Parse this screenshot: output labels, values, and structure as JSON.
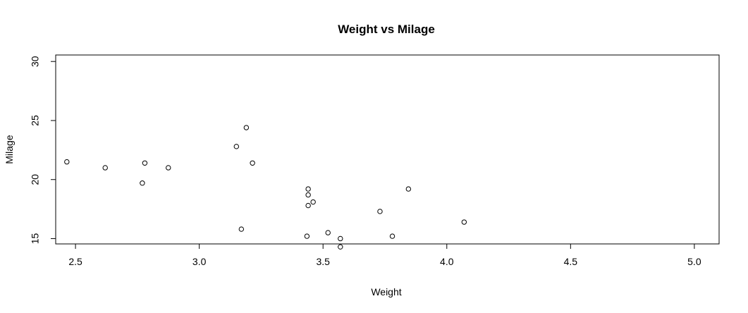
{
  "chart_data": {
    "type": "scatter",
    "title": "Weight vs Milage",
    "xlabel": "Weight",
    "ylabel": "Milage",
    "xlim": [
      2.42,
      5.1
    ],
    "ylim": [
      14.55,
      30.55
    ],
    "xticks": [
      "2.5",
      "3.0",
      "3.5",
      "4.0",
      "4.5",
      "5.0"
    ],
    "yticks": [
      "15",
      "20",
      "25",
      "30"
    ],
    "grid": false,
    "legend": "none",
    "marker": "open-circle",
    "colors": {
      "point": "#000000",
      "axis": "#000000",
      "background": "#ffffff"
    },
    "points": [
      {
        "x": 2.465,
        "y": 21.5
      },
      {
        "x": 2.62,
        "y": 21.0
      },
      {
        "x": 2.77,
        "y": 19.7
      },
      {
        "x": 2.78,
        "y": 21.4
      },
      {
        "x": 2.875,
        "y": 21.0
      },
      {
        "x": 3.15,
        "y": 22.8
      },
      {
        "x": 3.17,
        "y": 15.8
      },
      {
        "x": 3.19,
        "y": 24.4
      },
      {
        "x": 3.215,
        "y": 21.4
      },
      {
        "x": 3.435,
        "y": 15.2
      },
      {
        "x": 3.44,
        "y": 19.2
      },
      {
        "x": 3.44,
        "y": 18.7
      },
      {
        "x": 3.44,
        "y": 17.8
      },
      {
        "x": 3.46,
        "y": 18.1
      },
      {
        "x": 3.52,
        "y": 15.5
      },
      {
        "x": 3.57,
        "y": 15.0
      },
      {
        "x": 3.57,
        "y": 14.3
      },
      {
        "x": 3.73,
        "y": 17.3
      },
      {
        "x": 3.78,
        "y": 15.2
      },
      {
        "x": 3.845,
        "y": 19.2
      },
      {
        "x": 4.07,
        "y": 16.4
      }
    ]
  }
}
